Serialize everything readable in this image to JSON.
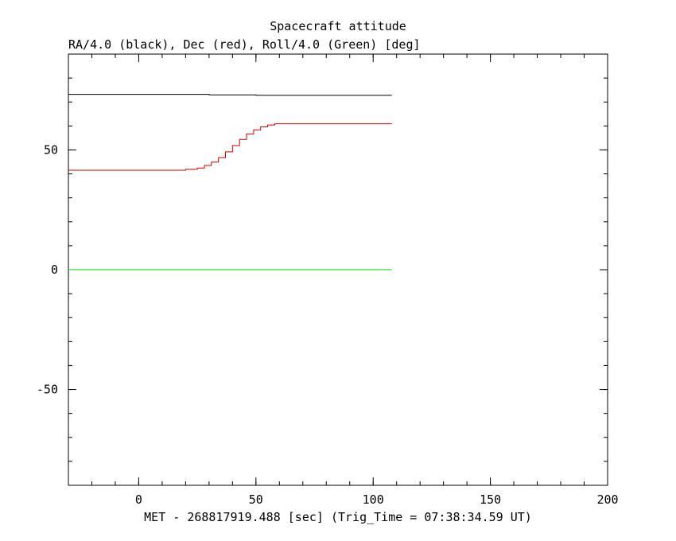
{
  "chart_data": {
    "type": "line",
    "title": "Spacecraft attitude",
    "ylabel": "RA/4.0 (black), Dec (red), Roll/4.0 (Green) [deg]",
    "xlabel": "MET - 268817919.488 [sec] (Trig_Time = 07:38:34.59 UT)",
    "xlim": [
      -30,
      200
    ],
    "ylim": [
      -90,
      90
    ],
    "x_ticks": [
      0,
      50,
      100,
      150,
      200
    ],
    "y_ticks": [
      -50,
      0,
      50
    ],
    "x_minor_step": 10,
    "y_minor_step": 10,
    "grid": false,
    "series": [
      {
        "color": "#000000",
        "step": true,
        "points": [
          [
            -30,
            73.2
          ],
          [
            30,
            73.2
          ],
          [
            30,
            73.0
          ],
          [
            50,
            73.0
          ],
          [
            50,
            72.8
          ],
          [
            108,
            72.8
          ]
        ]
      },
      {
        "color": "#cc0000",
        "step": true,
        "points": [
          [
            -30,
            41.5
          ],
          [
            20,
            41.5
          ],
          [
            20,
            41.9
          ],
          [
            25,
            41.9
          ],
          [
            25,
            42.4
          ],
          [
            28,
            42.4
          ],
          [
            28,
            43.5
          ],
          [
            31,
            43.5
          ],
          [
            31,
            44.9
          ],
          [
            34,
            44.9
          ],
          [
            34,
            46.8
          ],
          [
            37,
            46.8
          ],
          [
            37,
            49.2
          ],
          [
            40,
            49.2
          ],
          [
            40,
            51.8
          ],
          [
            43,
            51.8
          ],
          [
            43,
            54.4
          ],
          [
            46,
            54.4
          ],
          [
            46,
            56.7
          ],
          [
            49,
            56.7
          ],
          [
            49,
            58.4
          ],
          [
            52,
            58.4
          ],
          [
            52,
            59.6
          ],
          [
            55,
            59.6
          ],
          [
            55,
            60.4
          ],
          [
            58,
            60.4
          ],
          [
            58,
            60.9
          ],
          [
            61,
            60.9
          ],
          [
            108,
            60.9
          ]
        ]
      },
      {
        "color": "#00dd00",
        "step": false,
        "points": [
          [
            -30,
            0.0
          ],
          [
            108,
            0.0
          ]
        ]
      }
    ]
  }
}
